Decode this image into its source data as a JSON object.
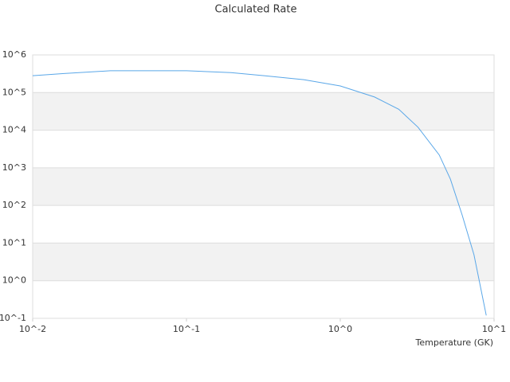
{
  "chart_data": {
    "type": "line",
    "title": "Calculated Rate",
    "x_label": "Temperature (GK)",
    "log_x": true,
    "log_y": true,
    "grid": true,
    "xlim": [
      0.01,
      10
    ],
    "ylim": [
      0.1,
      1000000
    ],
    "xticks": [
      {
        "value": 0.01,
        "label": "10^-2"
      },
      {
        "value": 0.1,
        "label": "10^-1"
      },
      {
        "value": 1,
        "label": "10^0"
      },
      {
        "value": 10,
        "label": "10^1"
      }
    ],
    "yticks": [
      {
        "value": 0.1,
        "label": "10^-1"
      },
      {
        "value": 1,
        "label": "10^0"
      },
      {
        "value": 10,
        "label": "10^1"
      },
      {
        "value": 100,
        "label": "10^2"
      },
      {
        "value": 1000,
        "label": "10^3"
      },
      {
        "value": 10000,
        "label": "10^4"
      },
      {
        "value": 100000,
        "label": "10^5"
      },
      {
        "value": 1000000,
        "label": "10^6"
      }
    ],
    "x": [
      0.01,
      0.016,
      0.032,
      0.1,
      0.195,
      0.32,
      0.58,
      1.0,
      1.67,
      2.4,
      3.2,
      4.4,
      5.2,
      6.2,
      7.4,
      8.9
    ],
    "series": [
      {
        "color": "#5aa7e8",
        "values": [
          280000,
          320000,
          380000,
          380000,
          340000,
          280000,
          220000,
          150000,
          76000,
          36000,
          12000,
          2200,
          500,
          56,
          4.9,
          0.12
        ]
      }
    ]
  }
}
